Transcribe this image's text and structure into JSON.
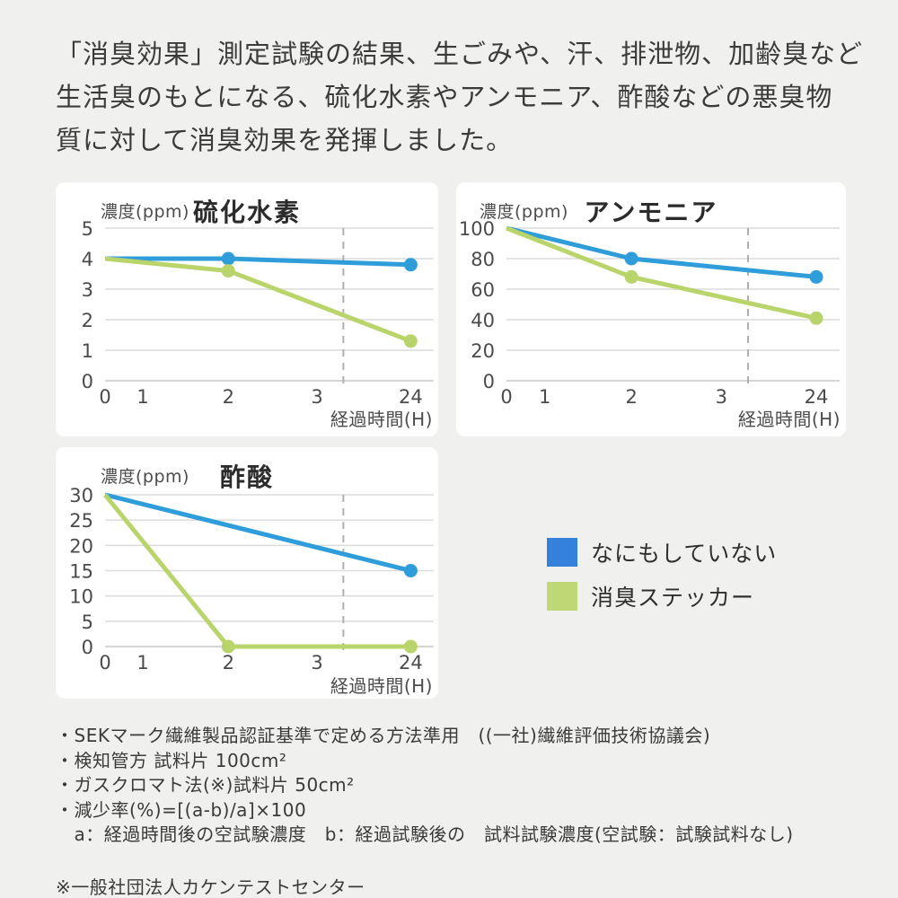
{
  "header": {
    "lines": [
      "「消臭効果」測定試験の結果、生ごみや、汗、排泄物、加齢臭など",
      "生活臭のもとになる、硫化水素やアンモニア、酢酸などの悪臭物",
      "質に対して消臭効果を発揮しました。"
    ]
  },
  "colors": {
    "background": "#F0F0EE",
    "panel": "#FFFFFF",
    "line_blue": "#2F9DD9",
    "line_green": "#BAD46C",
    "legend_blue": "#3381DA",
    "legend_green": "#BDD875",
    "grid": "#DCDCDC",
    "axis": "#C6C6C6",
    "dashed_divider": "#AFAFAF"
  },
  "chart_data": [
    {
      "type": "line",
      "title": "硫化水素",
      "unit_label": "濃度(ppm)",
      "x_label": "経過時間(H)",
      "ymax": 5,
      "y_ticks": [
        5,
        4,
        3,
        2,
        1,
        0
      ],
      "x_ticks": [
        "0",
        "1",
        "2",
        "3",
        "24"
      ],
      "grid": true,
      "dashed_divider_between": [
        "3",
        "24"
      ],
      "series": [
        {
          "name": "なにもしていない",
          "color": "#2F9DD9",
          "points": [
            [
              0,
              4
            ],
            [
              2,
              4
            ],
            [
              24,
              3.8
            ]
          ],
          "markers": [
            2,
            24
          ]
        },
        {
          "name": "消臭ステッカー",
          "color": "#BAD46C",
          "points": [
            [
              0,
              4
            ],
            [
              2,
              3.6
            ],
            [
              24,
              1.3
            ]
          ],
          "markers": [
            2,
            24
          ]
        }
      ]
    },
    {
      "type": "line",
      "title": "アンモニア",
      "unit_label": "濃度(ppm)",
      "x_label": "経過時間(H)",
      "ymax": 100,
      "y_ticks": [
        100,
        80,
        60,
        40,
        20,
        0
      ],
      "x_ticks": [
        "0",
        "1",
        "2",
        "3",
        "24"
      ],
      "grid": true,
      "dashed_divider_between": [
        "3",
        "24"
      ],
      "series": [
        {
          "name": "なにもしていない",
          "color": "#2F9DD9",
          "points": [
            [
              0,
              100
            ],
            [
              2,
              80
            ],
            [
              24,
              68
            ]
          ],
          "markers": [
            2,
            24
          ]
        },
        {
          "name": "消臭ステッカー",
          "color": "#BAD46C",
          "points": [
            [
              0,
              100
            ],
            [
              2,
              68
            ],
            [
              24,
              41
            ]
          ],
          "markers": [
            2,
            24
          ]
        }
      ]
    },
    {
      "type": "line",
      "title": "酢酸",
      "unit_label": "濃度(ppm)",
      "x_label": "経過時間(H)",
      "ymax": 30,
      "y_ticks": [
        30,
        25,
        20,
        15,
        10,
        5,
        0
      ],
      "x_ticks": [
        "0",
        "1",
        "2",
        "3",
        "24"
      ],
      "grid": true,
      "dashed_divider_between": [
        "3",
        "24"
      ],
      "series": [
        {
          "name": "なにもしていない",
          "color": "#2F9DD9",
          "points": [
            [
              0,
              30
            ],
            [
              24,
              15
            ]
          ],
          "markers": [
            24
          ]
        },
        {
          "name": "消臭ステッカー",
          "color": "#BAD46C",
          "points": [
            [
              0,
              30
            ],
            [
              2,
              0
            ],
            [
              24,
              0
            ]
          ],
          "markers": [
            2,
            24
          ]
        }
      ]
    }
  ],
  "legend": [
    {
      "label": "なにもしていない",
      "color": "#3381DA"
    },
    {
      "label": "消臭ステッカー",
      "color": "#BDD875"
    }
  ],
  "footnotes": [
    "・SEKマーク繊維製品認証基準で定める方法準用　((一社)繊維評価技術協議会)",
    "・検知管方 試料片 100cm²",
    "・ガスクロマト法(※)試料片 50cm²",
    "・減少率(%)=[(a-b)/a]×100",
    "　a：経過時間後の空試験濃度　b：経過試験後の　試料試験濃度(空試験：試験試料なし)"
  ],
  "footnote_note": "※一般社団法人カケンテストセンター"
}
